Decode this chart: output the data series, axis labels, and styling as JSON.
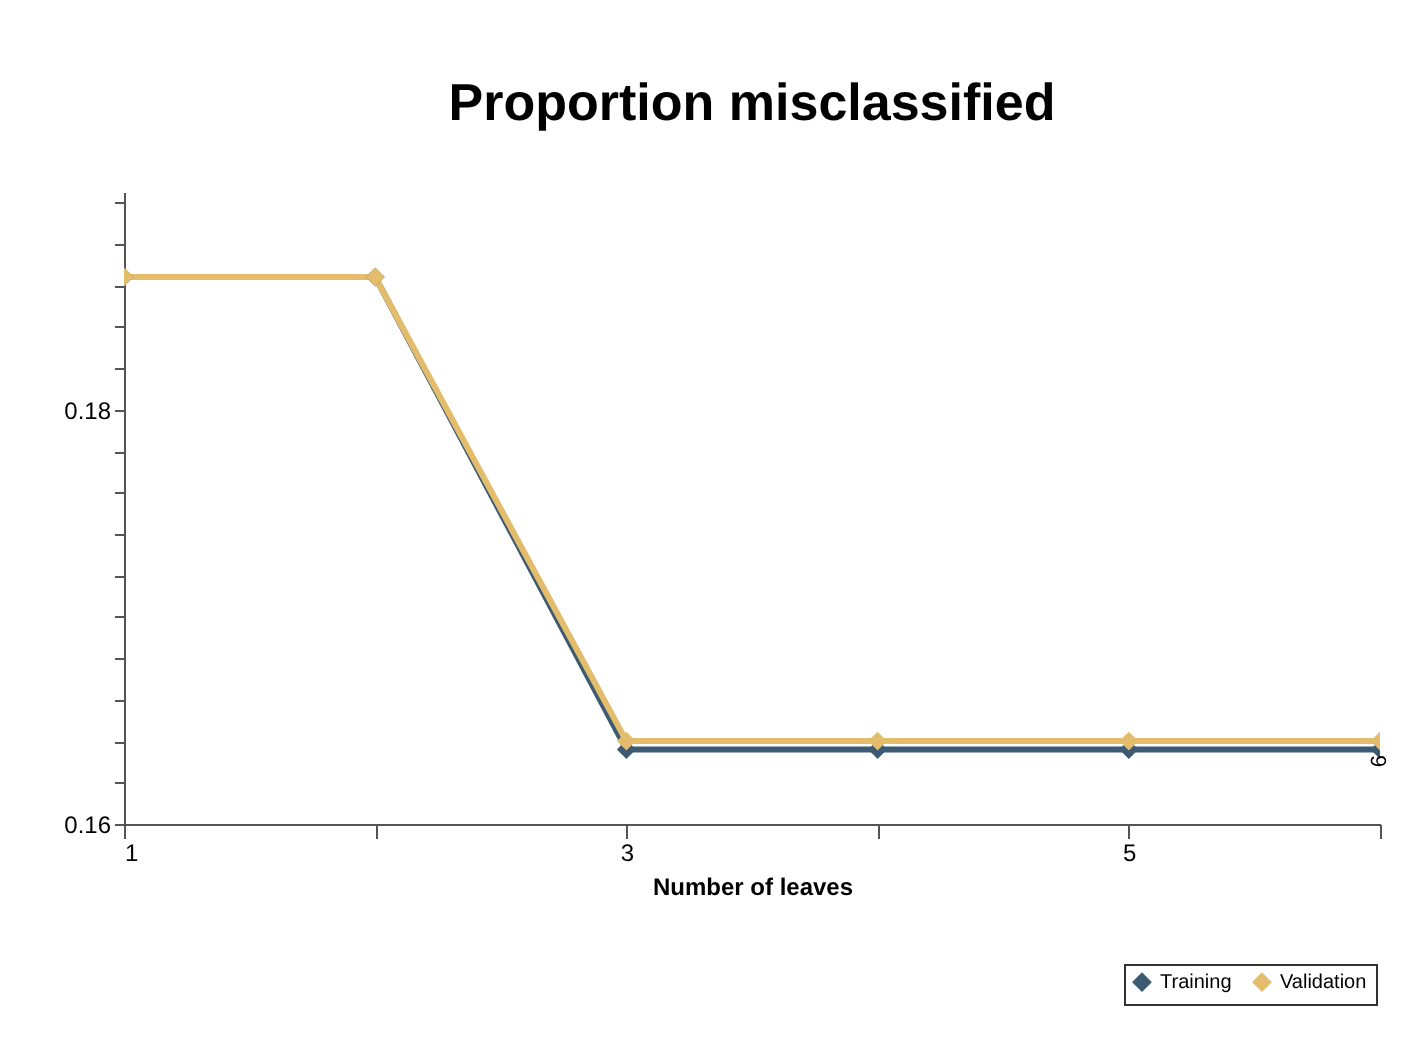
{
  "chart_data": {
    "type": "line",
    "title": "Proportion misclassified",
    "xlabel": "Number of leaves",
    "x": [
      1,
      2,
      3,
      4,
      5,
      6
    ],
    "series": [
      {
        "name": "Training",
        "color": "#3d5a73",
        "values": [
          0.1864,
          0.1864,
          0.1636,
          0.1636,
          0.1636,
          0.1636
        ]
      },
      {
        "name": "Validation",
        "color": "#e3bd6b",
        "values": [
          0.1864,
          0.1864,
          0.164,
          0.164,
          0.164,
          0.164
        ]
      }
    ],
    "xlim": [
      1,
      6
    ],
    "xticks": [
      1,
      {
        "value": 2,
        "label": null
      },
      3,
      {
        "value": 4,
        "label": null
      },
      5,
      {
        "value": 6,
        "label": null
      }
    ],
    "ylim": [
      0.16,
      0.1905
    ],
    "yticks": [
      0.16,
      {
        "value": 0.162,
        "label": null
      },
      {
        "value": 0.164,
        "label": null
      },
      {
        "value": 0.166,
        "label": null
      },
      {
        "value": 0.168,
        "label": null
      },
      {
        "value": 0.17,
        "label": null
      },
      {
        "value": 0.172,
        "label": null
      },
      {
        "value": 0.174,
        "label": null
      },
      {
        "value": 0.176,
        "label": null
      },
      {
        "value": 0.178,
        "label": null
      },
      0.18,
      {
        "value": 0.182,
        "label": null
      },
      {
        "value": 0.184,
        "label": null
      },
      {
        "value": 0.186,
        "label": null
      },
      {
        "value": 0.188,
        "label": null
      },
      {
        "value": 0.19,
        "label": null
      }
    ],
    "annotations": [
      {
        "text": "6",
        "x": 6,
        "y": 0.164
      }
    ],
    "marker": "diamond",
    "line_style": "solid",
    "grid": false,
    "legend": "bottom right"
  }
}
